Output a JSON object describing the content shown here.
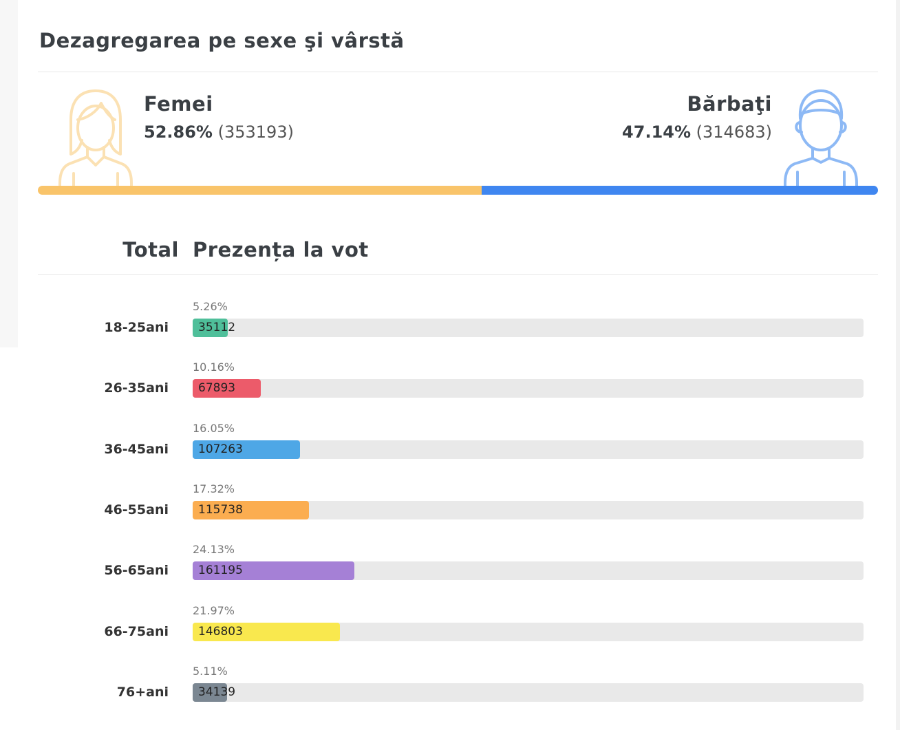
{
  "title": "Dezagregarea pe sexe şi vârstă",
  "gender": {
    "female": {
      "name": "Femei",
      "percent": "52.86%",
      "count": "(353193)",
      "share": 52.86,
      "color": "#f9c46a",
      "icon": "woman-icon"
    },
    "male": {
      "name": "Bărbaţi",
      "percent": "47.14%",
      "count": "(314683)",
      "share": 47.14,
      "color": "#3f86f0",
      "icon": "man-icon"
    }
  },
  "headers": {
    "total": "Total",
    "turnout": "Prezența la vot"
  },
  "chart_data": {
    "type": "bar",
    "orientation": "horizontal",
    "categories": [
      "18-25ani",
      "26-35ani",
      "36-45ani",
      "46-55ani",
      "56-65ani",
      "66-75ani",
      "76+ani"
    ],
    "percent_labels": [
      "5.26%",
      "10.16%",
      "16.05%",
      "17.32%",
      "24.13%",
      "21.97%",
      "5.11%"
    ],
    "values": [
      5.26,
      10.16,
      16.05,
      17.32,
      24.13,
      21.97,
      5.11
    ],
    "counts": [
      "35112",
      "67893",
      "107263",
      "115738",
      "161195",
      "146803",
      "34139"
    ],
    "colors": [
      "#4fbf9a",
      "#ec5b6a",
      "#4ea7e6",
      "#fbad50",
      "#a580d6",
      "#f9e84e",
      "#7b8792"
    ],
    "xlim": [
      0,
      100
    ],
    "grid": false
  }
}
